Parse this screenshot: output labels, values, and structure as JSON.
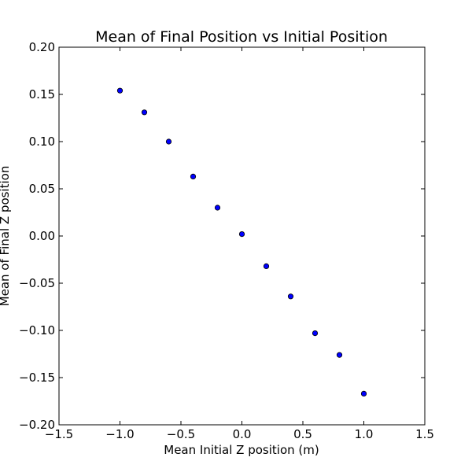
{
  "chart_data": {
    "type": "scatter",
    "title": "Mean of Final Position vs Initial Position",
    "xlabel": "Mean Initial Z position (m)",
    "ylabel": "Mean of Final Z position",
    "xlim": [
      -1.5,
      1.5
    ],
    "ylim": [
      -0.2,
      0.2
    ],
    "xticks": [
      -1.5,
      -1.0,
      -0.5,
      0.0,
      0.5,
      1.0,
      1.5
    ],
    "xtick_labels": [
      "−1.5",
      "−1.0",
      "−0.5",
      "0.0",
      "0.5",
      "1.0",
      "1.5"
    ],
    "yticks": [
      -0.2,
      -0.15,
      -0.1,
      -0.05,
      0.0,
      0.05,
      0.1,
      0.15,
      0.2
    ],
    "ytick_labels": [
      "−0.20",
      "−0.15",
      "−0.10",
      "−0.05",
      "0.00",
      "0.05",
      "0.10",
      "0.15",
      "0.20"
    ],
    "grid": false,
    "marker_color": "#0000ff",
    "series": [
      {
        "x": [
          -1.0,
          -0.8,
          -0.6,
          -0.4,
          -0.2,
          0.0,
          0.2,
          0.4,
          0.6,
          0.8,
          1.0
        ],
        "y": [
          0.154,
          0.131,
          0.1,
          0.063,
          0.03,
          0.002,
          -0.032,
          -0.064,
          -0.103,
          -0.126,
          -0.167
        ]
      }
    ]
  }
}
